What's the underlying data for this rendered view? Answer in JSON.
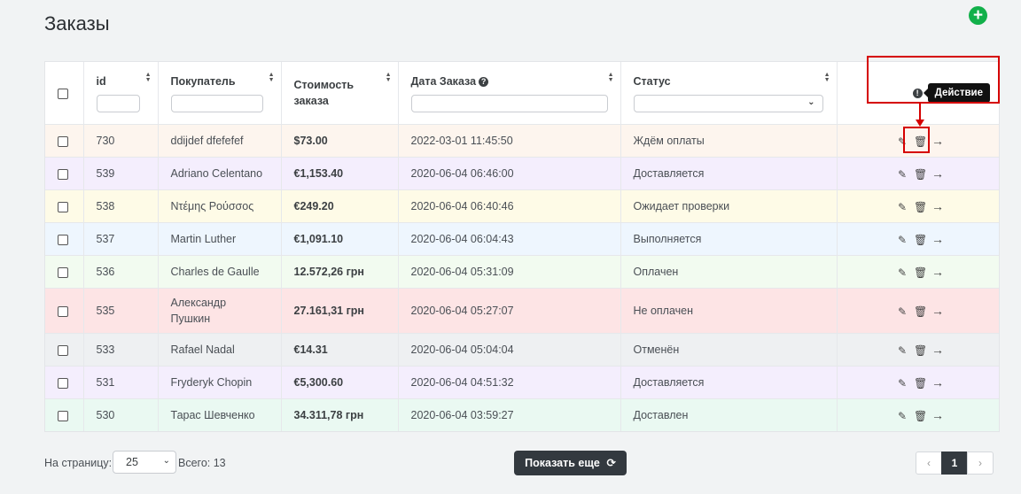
{
  "page": {
    "title": "Заказы",
    "add_icon": "plus-circle-icon"
  },
  "table": {
    "columns": {
      "id": "id",
      "customer": "Покупатель",
      "cost": "Стоимость заказа",
      "date": "Дата Заказа",
      "status": "Статус",
      "action": "Действие"
    },
    "rows": [
      {
        "id": "730",
        "customer": "ddijdef dfefefef",
        "cost": "$73.00",
        "date": "2022-03-01 11:45:50",
        "status": "Ждём оплаты",
        "bg": "#fdf5ee"
      },
      {
        "id": "539",
        "customer": "Adriano Celentano",
        "cost": "€1,153.40",
        "date": "2020-06-04 06:46:00",
        "status": "Доставляется",
        "bg": "#f4eefd"
      },
      {
        "id": "538",
        "customer": "Ντέμης Ρούσσος",
        "cost": "€249.20",
        "date": "2020-06-04 06:40:46",
        "status": "Ожидает проверки",
        "bg": "#fefbe7"
      },
      {
        "id": "537",
        "customer": "Martin Luther",
        "cost": "€1,091.10",
        "date": "2020-06-04 06:04:43",
        "status": "Выполняется",
        "bg": "#eef6fe"
      },
      {
        "id": "536",
        "customer": "Charles de Gaulle",
        "cost": "12.572,26 грн",
        "date": "2020-06-04 05:31:09",
        "status": "Оплачен",
        "bg": "#f2fbf0"
      },
      {
        "id": "535",
        "customer_line1": "Александр",
        "customer_line2": "Пушкин",
        "cost": "27.161,31 грн",
        "date": "2020-06-04 05:27:07",
        "status": "Не оплачен",
        "bg": "#fde4e5"
      },
      {
        "id": "533",
        "customer": "Rafael Nadal",
        "cost": "€14.31",
        "date": "2020-06-04 05:04:04",
        "status": "Отменён",
        "bg": "#eef0f2"
      },
      {
        "id": "531",
        "customer": "Fryderyk Chopin",
        "cost": "€5,300.60",
        "date": "2020-06-04 04:51:32",
        "status": "Доставляется",
        "bg": "#f4eefd"
      },
      {
        "id": "530",
        "customer": "Тарас Шевченко",
        "cost": "34.311,78 грн",
        "date": "2020-06-04 03:59:27",
        "status": "Доставлен",
        "bg": "#eaf9f2"
      }
    ],
    "row_actions": {
      "edit_icon": "edit-icon",
      "delete_icon": "trash-icon",
      "open_icon": "arrow-right-icon"
    }
  },
  "footer": {
    "per_page_label": "На страницу:",
    "per_page_value": "25",
    "total": "Всего: 13",
    "show_more": "Показать еще",
    "pagination": {
      "prev": "‹",
      "current": "1",
      "next": "›"
    }
  }
}
